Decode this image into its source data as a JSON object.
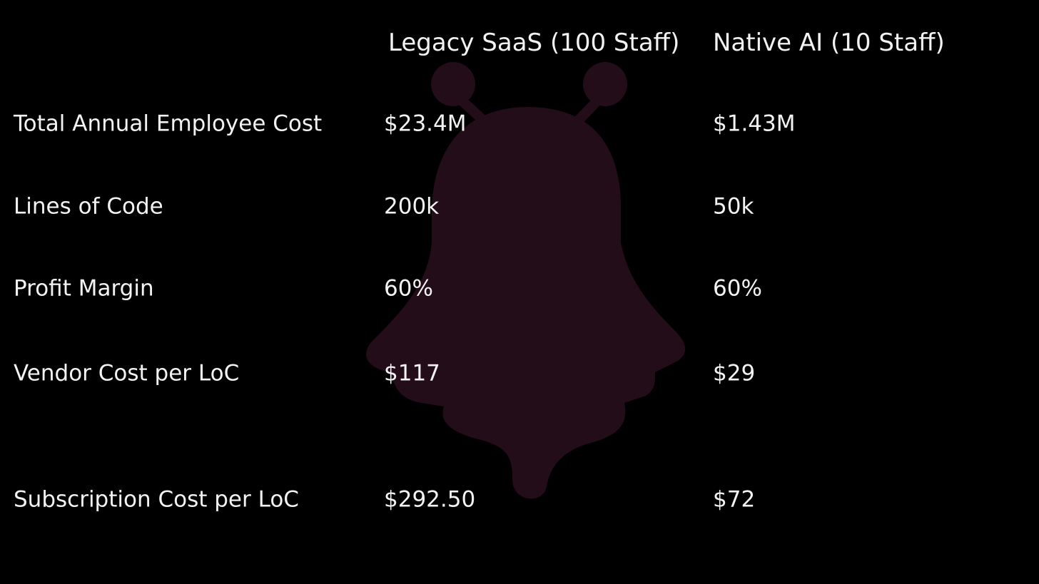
{
  "table": {
    "header": [
      "Legacy SaaS (100 Staff)",
      "Native AI (10 Staff)"
    ],
    "rows": [
      [
        "Total Annual Employee Cost",
        "$23.4M",
        "$1.43M"
      ],
      [
        "Lines of Code",
        "200k",
        "50k"
      ],
      [
        "Profit Margin",
        "60%",
        "60%"
      ],
      [
        "Vendor Cost per LoC",
        "$117",
        "$29"
      ],
      [
        "Subscription Cost per LoC",
        "$292.50",
        "$72"
      ]
    ]
  }
}
